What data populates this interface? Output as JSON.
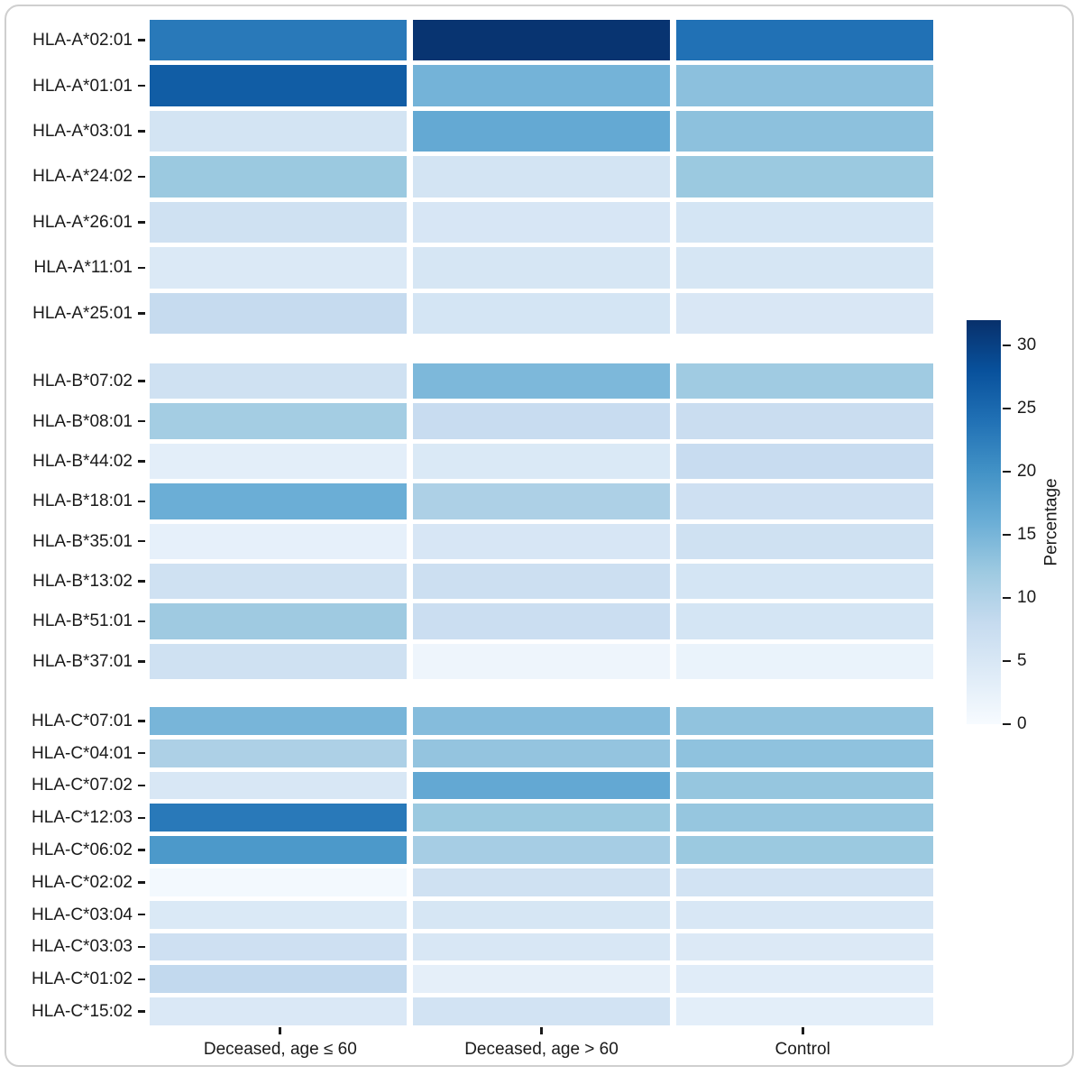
{
  "chart_data": {
    "type": "heatmap",
    "title": "",
    "xlabel": "",
    "ylabel": "",
    "columns": [
      "Deceased, age ≤ 60",
      "Deceased, age > 60",
      "Control"
    ],
    "colorbar": {
      "label": "Percentage",
      "ticks": [
        0,
        5,
        10,
        15,
        20,
        25,
        30
      ],
      "vmin": 0,
      "vmax": 32,
      "palette": "Blues",
      "stops": [
        {
          "at": 0.0,
          "color": "#F7FBFF"
        },
        {
          "at": 0.125,
          "color": "#DEEBF7"
        },
        {
          "at": 0.25,
          "color": "#C6DBEF"
        },
        {
          "at": 0.375,
          "color": "#9ECAE1"
        },
        {
          "at": 0.5,
          "color": "#6BAED6"
        },
        {
          "at": 0.625,
          "color": "#4292C6"
        },
        {
          "at": 0.75,
          "color": "#2171B5"
        },
        {
          "at": 0.875,
          "color": "#08519C"
        },
        {
          "at": 1.0,
          "color": "#08306B"
        }
      ]
    },
    "layout": {
      "facet_heights": [
        348,
        350,
        353
      ],
      "facet_gaps": [
        33,
        31
      ],
      "grid": "off",
      "legend_position": "right"
    },
    "groups": [
      {
        "name": "HLA-A",
        "rows": [
          {
            "label": "HLA-A*02:01",
            "values": [
              23.0,
              31.5,
              24.0
            ]
          },
          {
            "label": "HLA-A*01:01",
            "values": [
              26.5,
              15.3,
              13.4
            ]
          },
          {
            "label": "HLA-A*03:01",
            "values": [
              5.8,
              16.7,
              13.3
            ]
          },
          {
            "label": "HLA-A*24:02",
            "values": [
              12.2,
              5.8,
              12.2
            ]
          },
          {
            "label": "HLA-A*26:01",
            "values": [
              6.5,
              5.2,
              5.6
            ]
          },
          {
            "label": "HLA-A*11:01",
            "values": [
              4.5,
              5.3,
              5.3
            ]
          },
          {
            "label": "HLA-A*25:01",
            "values": [
              8.0,
              5.6,
              4.9
            ]
          }
        ]
      },
      {
        "name": "HLA-B",
        "rows": [
          {
            "label": "HLA-B*07:02",
            "values": [
              6.5,
              14.6,
              11.8
            ]
          },
          {
            "label": "HLA-B*08:01",
            "values": [
              11.4,
              7.7,
              7.4
            ]
          },
          {
            "label": "HLA-B*44:02",
            "values": [
              3.2,
              4.6,
              7.7
            ]
          },
          {
            "label": "HLA-B*18:01",
            "values": [
              16.0,
              10.5,
              6.7
            ]
          },
          {
            "label": "HLA-B*35:01",
            "values": [
              2.7,
              5.2,
              6.5
            ]
          },
          {
            "label": "HLA-B*13:02",
            "values": [
              6.5,
              7.0,
              5.6
            ]
          },
          {
            "label": "HLA-B*51:01",
            "values": [
              11.9,
              7.2,
              5.6
            ]
          },
          {
            "label": "HLA-B*37:01",
            "values": [
              6.5,
              1.5,
              2.1
            ]
          }
        ]
      },
      {
        "name": "HLA-C",
        "rows": [
          {
            "label": "HLA-C*07:01",
            "values": [
              15.0,
              14.0,
              13.0
            ]
          },
          {
            "label": "HLA-C*04:01",
            "values": [
              10.5,
              12.8,
              13.2
            ]
          },
          {
            "label": "HLA-C*07:02",
            "values": [
              5.0,
              16.8,
              12.6
            ]
          },
          {
            "label": "HLA-C*12:03",
            "values": [
              23.0,
              12.2,
              12.6
            ]
          },
          {
            "label": "HLA-C*06:02",
            "values": [
              19.0,
              11.2,
              12.2
            ]
          },
          {
            "label": "HLA-C*02:02",
            "values": [
              0.6,
              6.5,
              6.0
            ]
          },
          {
            "label": "HLA-C*03:04",
            "values": [
              4.6,
              5.3,
              5.0
            ]
          },
          {
            "label": "HLA-C*03:03",
            "values": [
              6.7,
              5.0,
              4.4
            ]
          },
          {
            "label": "HLA-C*01:02",
            "values": [
              8.4,
              2.9,
              3.7
            ]
          },
          {
            "label": "HLA-C*15:02",
            "values": [
              4.7,
              6.0,
              3.2
            ]
          }
        ]
      }
    ]
  }
}
